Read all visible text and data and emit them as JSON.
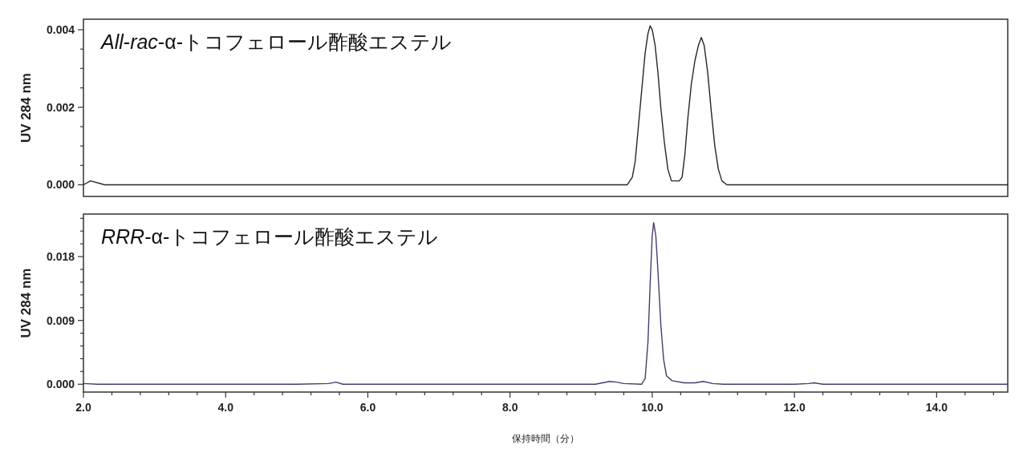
{
  "chart_data": [
    {
      "type": "line",
      "title": "*All*-*rac*-α-トコフェロール酢酸エステル",
      "ylabel": "UV 284 nm",
      "tick_labels": "y",
      "color": "#262626",
      "xlim": [
        2,
        15
      ],
      "ylim": [
        -0.0003,
        0.00427
      ],
      "yticks": [
        {
          "value": 0,
          "label": "0.000"
        },
        {
          "value": 0.0005,
          "label": null
        },
        {
          "value": 0.001,
          "label": null
        },
        {
          "value": 0.0015,
          "label": null
        },
        {
          "value": 0.002,
          "label": "0.002"
        },
        {
          "value": 0.0025,
          "label": null
        },
        {
          "value": 0.003,
          "label": null
        },
        {
          "value": 0.0035,
          "label": null
        },
        {
          "value": 0.004,
          "label": "0.004"
        }
      ],
      "x": [
        2.0,
        2.1,
        2.3,
        2.8,
        3.4,
        4.0,
        4.5,
        5.0,
        5.55,
        6.0,
        6.4,
        7.0,
        7.5,
        8.0,
        8.5,
        9.0,
        9.5,
        9.65,
        9.72,
        9.76,
        9.8,
        9.85,
        9.9,
        9.94,
        9.97,
        10.0,
        10.04,
        10.08,
        10.12,
        10.17,
        10.22,
        10.27,
        10.33,
        10.38,
        10.42,
        10.46,
        10.5,
        10.55,
        10.6,
        10.65,
        10.69,
        10.73,
        10.78,
        10.83,
        10.88,
        10.93,
        10.98,
        11.05,
        11.5,
        12.0,
        12.5,
        13.0,
        13.5,
        14.0,
        14.5,
        15.0
      ],
      "values": [
        0.0,
        0.0001,
        0.0,
        0.0,
        0.0,
        0.0,
        0.0,
        0.0,
        0.0,
        0.0,
        0.0,
        0.0,
        0.0,
        0.0,
        0.0,
        0.0,
        0.0,
        0.0,
        0.0002,
        0.0006,
        0.0014,
        0.0024,
        0.0034,
        0.0039,
        0.0041,
        0.004,
        0.0036,
        0.0029,
        0.002,
        0.0011,
        0.0004,
        0.0001,
        0.0001,
        0.0001,
        0.0002,
        0.0008,
        0.0017,
        0.0026,
        0.0032,
        0.0036,
        0.0038,
        0.0036,
        0.0029,
        0.0019,
        0.001,
        0.0004,
        0.0001,
        0.0,
        0.0,
        0.0,
        0.0,
        0.0,
        0.0,
        0.0,
        0.0,
        0.0
      ]
    },
    {
      "type": "line",
      "title": "*RRR*-α-トコフェロール酢酸エステル",
      "ylabel": "UV 284 nm",
      "xlabel": "保持時間（分）",
      "color": "#4b3a6e",
      "xlim": [
        2,
        15
      ],
      "ylim": [
        -0.0011,
        0.024
      ],
      "xticks": [
        {
          "value": 2,
          "label": "2.0"
        },
        {
          "value": 2.4,
          "label": null
        },
        {
          "value": 2.8,
          "label": null
        },
        {
          "value": 3.2,
          "label": null
        },
        {
          "value": 3.6,
          "label": null
        },
        {
          "value": 4,
          "label": "4.0"
        },
        {
          "value": 4.4,
          "label": null
        },
        {
          "value": 4.8,
          "label": null
        },
        {
          "value": 5.2,
          "label": null
        },
        {
          "value": 5.6,
          "label": null
        },
        {
          "value": 6,
          "label": "6.0"
        },
        {
          "value": 6.4,
          "label": null
        },
        {
          "value": 6.8,
          "label": null
        },
        {
          "value": 7.2,
          "label": null
        },
        {
          "value": 7.6,
          "label": null
        },
        {
          "value": 8,
          "label": "8.0"
        },
        {
          "value": 8.4,
          "label": null
        },
        {
          "value": 8.8,
          "label": null
        },
        {
          "value": 9.2,
          "label": null
        },
        {
          "value": 9.6,
          "label": null
        },
        {
          "value": 10,
          "label": "10.0"
        },
        {
          "value": 10.4,
          "label": null
        },
        {
          "value": 10.8,
          "label": null
        },
        {
          "value": 11.2,
          "label": null
        },
        {
          "value": 11.6,
          "label": null
        },
        {
          "value": 12,
          "label": "12.0"
        },
        {
          "value": 12.4,
          "label": null
        },
        {
          "value": 12.8,
          "label": null
        },
        {
          "value": 13.2,
          "label": null
        },
        {
          "value": 13.6,
          "label": null
        },
        {
          "value": 14,
          "label": "14.0"
        },
        {
          "value": 14.4,
          "label": null
        },
        {
          "value": 14.8,
          "label": null
        }
      ],
      "yticks": [
        {
          "value": 0,
          "label": "0.000"
        },
        {
          "value": 0.0018,
          "label": null
        },
        {
          "value": 0.0036,
          "label": null
        },
        {
          "value": 0.0054,
          "label": null
        },
        {
          "value": 0.0072,
          "label": null
        },
        {
          "value": 0.009,
          "label": "0.009"
        },
        {
          "value": 0.0108,
          "label": null
        },
        {
          "value": 0.0126,
          "label": null
        },
        {
          "value": 0.0144,
          "label": null
        },
        {
          "value": 0.0162,
          "label": null
        },
        {
          "value": 0.018,
          "label": "0.018"
        },
        {
          "value": 0.0198,
          "label": null
        },
        {
          "value": 0.0216,
          "label": null
        },
        {
          "value": 0.0234,
          "label": null
        }
      ],
      "x": [
        2.0,
        2.2,
        3.0,
        4.0,
        5.0,
        5.45,
        5.55,
        5.65,
        6.0,
        7.0,
        8.0,
        9.2,
        9.3,
        9.4,
        9.5,
        9.6,
        9.85,
        9.9,
        9.94,
        9.97,
        10.0,
        10.02,
        10.05,
        10.08,
        10.12,
        10.16,
        10.2,
        10.28,
        10.45,
        10.6,
        10.72,
        10.85,
        11.0,
        12.0,
        12.2,
        12.28,
        12.4,
        13.0,
        14.0,
        15.0
      ],
      "values": [
        0.0001,
        0.0,
        0.0,
        0.0,
        0.0,
        0.0001,
        0.0003,
        0.0,
        0.0,
        0.0,
        0.0,
        0.0,
        0.0002,
        0.0004,
        0.0003,
        0.0001,
        0.0,
        0.0008,
        0.006,
        0.014,
        0.021,
        0.0228,
        0.021,
        0.016,
        0.0085,
        0.0035,
        0.0012,
        0.0005,
        0.0002,
        0.0002,
        0.0004,
        0.0001,
        0.0,
        0.0,
        0.0001,
        0.0002,
        0.0,
        0.0,
        0.0,
        0.0
      ]
    }
  ]
}
